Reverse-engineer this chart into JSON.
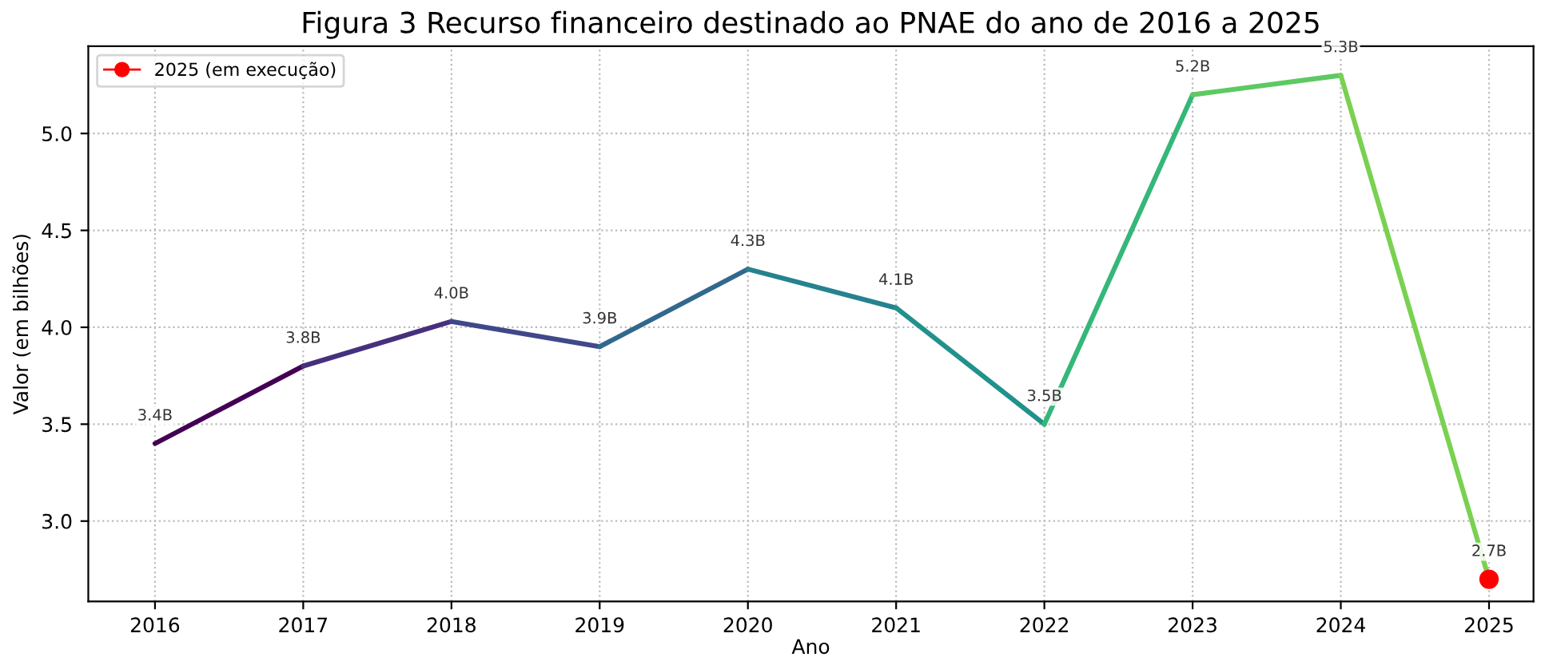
{
  "chart_data": {
    "type": "line",
    "title": "Figura 3 Recurso financeiro destinado ao PNAE do ano de 2016 a 2025",
    "xlabel": "Ano",
    "ylabel": "Valor (em bilhões)",
    "series": [
      {
        "x": [
          2016,
          2017
        ],
        "values": [
          3.4,
          3.8
        ],
        "color": "#440154",
        "value_labels": [
          "3.4B",
          null
        ]
      },
      {
        "x": [
          2017,
          2018
        ],
        "values": [
          3.8,
          4.03
        ],
        "color": "#46307e",
        "value_labels": [
          "3.8B",
          null
        ]
      },
      {
        "x": [
          2018,
          2019
        ],
        "values": [
          4.03,
          3.9
        ],
        "color": "#3f4889",
        "value_labels": [
          "4.0B",
          null
        ]
      },
      {
        "x": [
          2019,
          2020
        ],
        "values": [
          3.9,
          4.3
        ],
        "color": "#31688e",
        "value_labels": [
          "3.9B",
          null
        ]
      },
      {
        "x": [
          2020,
          2021
        ],
        "values": [
          4.3,
          4.1
        ],
        "color": "#26828e",
        "value_labels": [
          "4.3B",
          null
        ]
      },
      {
        "x": [
          2021,
          2022
        ],
        "values": [
          4.1,
          3.5
        ],
        "color": "#21918c",
        "value_labels": [
          "4.1B",
          null
        ]
      },
      {
        "x": [
          2022,
          2023
        ],
        "values": [
          3.5,
          5.2
        ],
        "color": "#35b779",
        "value_labels": [
          "3.5B",
          null
        ]
      },
      {
        "x": [
          2023,
          2024
        ],
        "values": [
          5.2,
          5.3
        ],
        "color": "#5ec962",
        "value_labels": [
          "5.2B",
          null
        ]
      },
      {
        "x": [
          2024,
          2025
        ],
        "values": [
          5.3,
          2.7
        ],
        "color": "#7ad151",
        "value_labels": [
          "5.3B",
          "2.7B"
        ]
      },
      {
        "type": "scatter",
        "name": "2025 (em execução)",
        "color": "#ff0000",
        "x": [
          2025
        ],
        "values": [
          2.7
        ],
        "marker": "circle"
      }
    ],
    "xlim": [
      2015.55,
      2025.3
    ],
    "ylim": [
      2.585,
      5.45
    ],
    "xticks": [
      2016,
      2017,
      2018,
      2019,
      2020,
      2021,
      2022,
      2023,
      2024,
      2025
    ],
    "yticks": [
      {
        "value": 3.0,
        "label": "3.0"
      },
      {
        "value": 3.5,
        "label": "3.5"
      },
      {
        "value": 4.0,
        "label": "4.0"
      },
      {
        "value": 4.5,
        "label": "4.5"
      },
      {
        "value": 5.0,
        "label": "5.0"
      }
    ],
    "grid": true,
    "legend": "top left"
  }
}
